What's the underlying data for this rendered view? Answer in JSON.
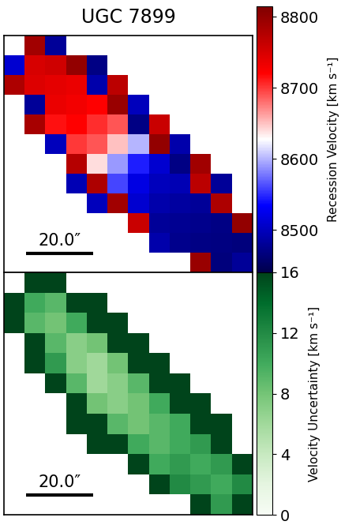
{
  "title": "UGC 7899",
  "chart_data": [
    {
      "type": "heatmap",
      "xlim": [
        -37,
        37
      ],
      "ylim": [
        -35,
        35
      ],
      "tick_labels": false,
      "cells": [
        [
          null,
          8790,
          8480,
          null,
          null,
          null,
          null,
          null,
          null,
          null,
          null,
          null
        ],
        [
          8510,
          8750,
          8755,
          8800,
          8470,
          null,
          null,
          null,
          null,
          null,
          null,
          null
        ],
        [
          8780,
          8745,
          8740,
          8735,
          8490,
          8770,
          null,
          null,
          null,
          null,
          null,
          null
        ],
        [
          null,
          8480,
          8735,
          8730,
          8720,
          8795,
          8500,
          null,
          null,
          null,
          null,
          null
        ],
        [
          null,
          8785,
          8715,
          8720,
          8705,
          8690,
          8470,
          8760,
          null,
          null,
          null,
          null
        ],
        [
          null,
          null,
          8500,
          8700,
          8690,
          8650,
          8600,
          8800,
          8490,
          null,
          null,
          null
        ],
        [
          null,
          null,
          null,
          8775,
          8640,
          8590,
          8545,
          8510,
          8470,
          8790,
          null,
          null
        ],
        [
          null,
          null,
          null,
          8495,
          8780,
          8560,
          8520,
          8500,
          8495,
          8770,
          8480,
          null
        ],
        [
          null,
          null,
          null,
          null,
          8500,
          8790,
          8510,
          8490,
          8485,
          8480,
          8780,
          null
        ],
        [
          null,
          null,
          null,
          null,
          null,
          null,
          8760,
          8480,
          8478,
          8475,
          8470,
          8800
        ],
        [
          null,
          null,
          null,
          null,
          null,
          null,
          null,
          8490,
          8475,
          8470,
          8468,
          8465
        ],
        [
          null,
          null,
          null,
          null,
          null,
          null,
          null,
          null,
          null,
          8795,
          8465,
          8480
        ]
      ],
      "colorbar": {
        "label": "Recession Velocity [km s⁻¹]",
        "range": [
          8440,
          8815
        ],
        "ticks": [
          8500,
          8600,
          8700,
          8800
        ]
      },
      "scale_bar": {
        "length": 20.0,
        "label": "20.0″"
      }
    },
    {
      "type": "heatmap",
      "xlim": [
        -37,
        37
      ],
      "ylim": [
        -35,
        35
      ],
      "tick_labels": false,
      "cells": [
        [
          null,
          16,
          16,
          null,
          null,
          null,
          null,
          null,
          null,
          null,
          null,
          null
        ],
        [
          16,
          10,
          9,
          16,
          16,
          null,
          null,
          null,
          null,
          null,
          null,
          null
        ],
        [
          16,
          9,
          8,
          10,
          16,
          16,
          null,
          null,
          null,
          null,
          null,
          null
        ],
        [
          null,
          16,
          9,
          7,
          8,
          16,
          16,
          null,
          null,
          null,
          null,
          null
        ],
        [
          null,
          16,
          11,
          7,
          6,
          8,
          16,
          16,
          null,
          null,
          null,
          null
        ],
        [
          null,
          null,
          16,
          9,
          6,
          7,
          9,
          16,
          16,
          null,
          null,
          null
        ],
        [
          null,
          null,
          null,
          16,
          8,
          7,
          8,
          10,
          16,
          16,
          null,
          null
        ],
        [
          null,
          null,
          null,
          16,
          16,
          9,
          8,
          9,
          10,
          16,
          16,
          null
        ],
        [
          null,
          null,
          null,
          null,
          16,
          16,
          10,
          9,
          10,
          11,
          16,
          null
        ],
        [
          null,
          null,
          null,
          null,
          null,
          null,
          16,
          10,
          11,
          10,
          11,
          16
        ],
        [
          null,
          null,
          null,
          null,
          null,
          null,
          null,
          16,
          12,
          11,
          10,
          12
        ],
        [
          null,
          null,
          null,
          null,
          null,
          null,
          null,
          null,
          null,
          16,
          11,
          16
        ]
      ],
      "colorbar": {
        "label": "Velocity Uncertainty [km s⁻¹]",
        "range": [
          0,
          16
        ],
        "ticks": [
          0,
          4,
          8,
          12,
          16
        ]
      },
      "scale_bar": {
        "length": 20.0,
        "label": "20.0″"
      }
    }
  ]
}
